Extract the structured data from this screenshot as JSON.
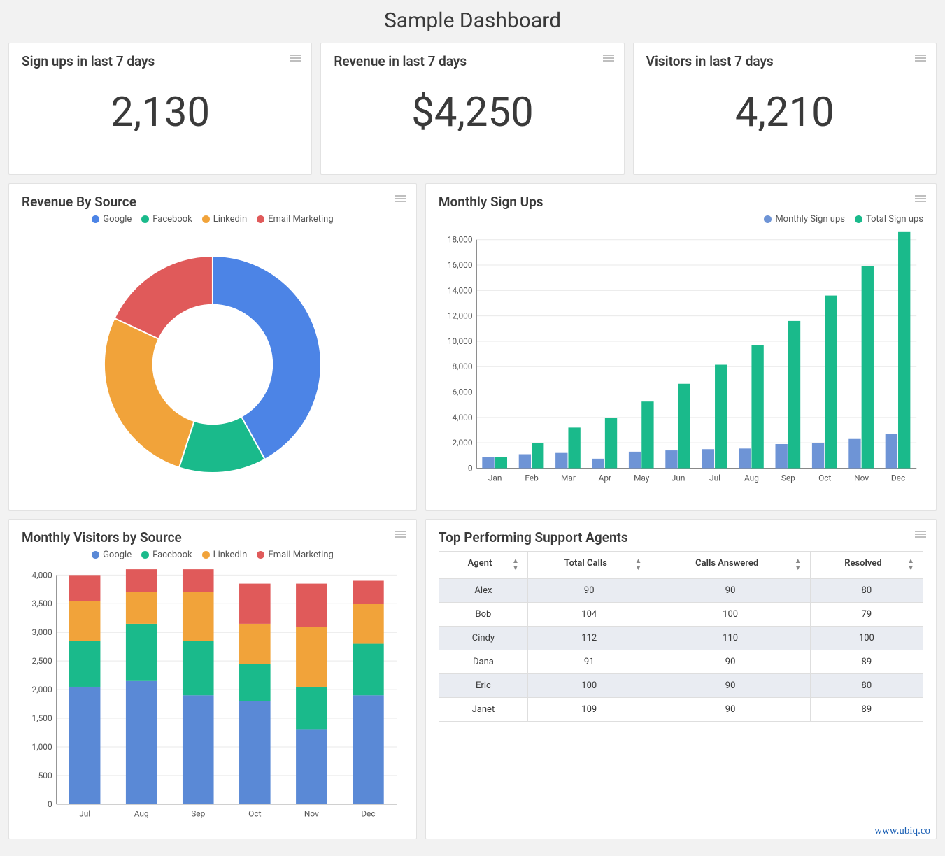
{
  "page_title": "Sample Dashboard",
  "stat_cards": [
    {
      "title": "Sign ups in last 7 days",
      "value": "2,130"
    },
    {
      "title": "Revenue in last 7 days",
      "value": "$4,250"
    },
    {
      "title": "Visitors in last 7 days",
      "value": "4,210"
    }
  ],
  "donut": {
    "title": "Revenue By Source",
    "type": "donut",
    "series": [
      {
        "label": "Google",
        "value": 42,
        "color": "#4c84e6"
      },
      {
        "label": "Facebook",
        "value": 13,
        "color": "#1aba8b"
      },
      {
        "label": "Linkedin",
        "value": 27,
        "color": "#f1a33a"
      },
      {
        "label": "Email Marketing",
        "value": 18,
        "color": "#e05a5a"
      }
    ],
    "inner_radius_pct": 55,
    "background_color": "#ffffff"
  },
  "monthly_signups": {
    "title": "Monthly Sign Ups",
    "type": "grouped-bar",
    "categories": [
      "Jan",
      "Feb",
      "Mar",
      "Apr",
      "May",
      "Jun",
      "Jul",
      "Aug",
      "Sep",
      "Oct",
      "Nov",
      "Dec"
    ],
    "series": [
      {
        "label": "Monthly Sign ups",
        "color": "#6e94d6",
        "values": [
          900,
          1100,
          1200,
          750,
          1300,
          1400,
          1500,
          1550,
          1900,
          2000,
          2300,
          2700
        ]
      },
      {
        "label": "Total Sign ups",
        "color": "#1aba8b",
        "values": [
          900,
          2000,
          3200,
          3950,
          5250,
          6650,
          8150,
          9700,
          11600,
          13600,
          15900,
          18600
        ]
      }
    ],
    "ylim": [
      0,
      18000
    ],
    "ytick_step": 2000,
    "y_tick_format": "comma",
    "grid_color": "#e9e9e9",
    "axis_color": "#888888",
    "label_fontsize": 12,
    "bar_group_width": 0.7
  },
  "visitors_stacked": {
    "title": "Monthly Visitors by Source",
    "type": "stacked-bar",
    "categories": [
      "Jul",
      "Aug",
      "Sep",
      "Oct",
      "Nov",
      "Dec"
    ],
    "series": [
      {
        "label": "Google",
        "color": "#5a89d6",
        "values": [
          2050,
          2150,
          1900,
          1800,
          1300,
          1900
        ]
      },
      {
        "label": "Facebook",
        "color": "#1aba8b",
        "values": [
          800,
          1000,
          950,
          650,
          750,
          900
        ]
      },
      {
        "label": "LinkedIn",
        "color": "#f1a33a",
        "values": [
          700,
          550,
          850,
          700,
          1050,
          700
        ]
      },
      {
        "label": "Email Marketing",
        "color": "#e05a5a",
        "values": [
          450,
          400,
          400,
          700,
          750,
          400
        ]
      }
    ],
    "ylim": [
      0,
      4000
    ],
    "ytick_step": 500,
    "y_tick_format": "comma",
    "grid_color": "#e9e9e9",
    "axis_color": "#888888",
    "label_fontsize": 12,
    "bar_width": 0.55
  },
  "agents_table": {
    "title": "Top Performing Support Agents",
    "columns": [
      "Agent",
      "Total Calls",
      "Calls Answered",
      "Resolved"
    ],
    "rows": [
      [
        "Alex",
        "90",
        "90",
        "80"
      ],
      [
        "Bob",
        "104",
        "100",
        "79"
      ],
      [
        "Cindy",
        "112",
        "110",
        "100"
      ],
      [
        "Dana",
        "91",
        "90",
        "89"
      ],
      [
        "Eric",
        "100",
        "90",
        "80"
      ],
      [
        "Janet",
        "109",
        "90",
        "89"
      ]
    ],
    "stripe_color": "#e9ecf2",
    "border_color": "#dedede",
    "header_fontsize": 13
  },
  "watermark": "www.ubiq.co"
}
